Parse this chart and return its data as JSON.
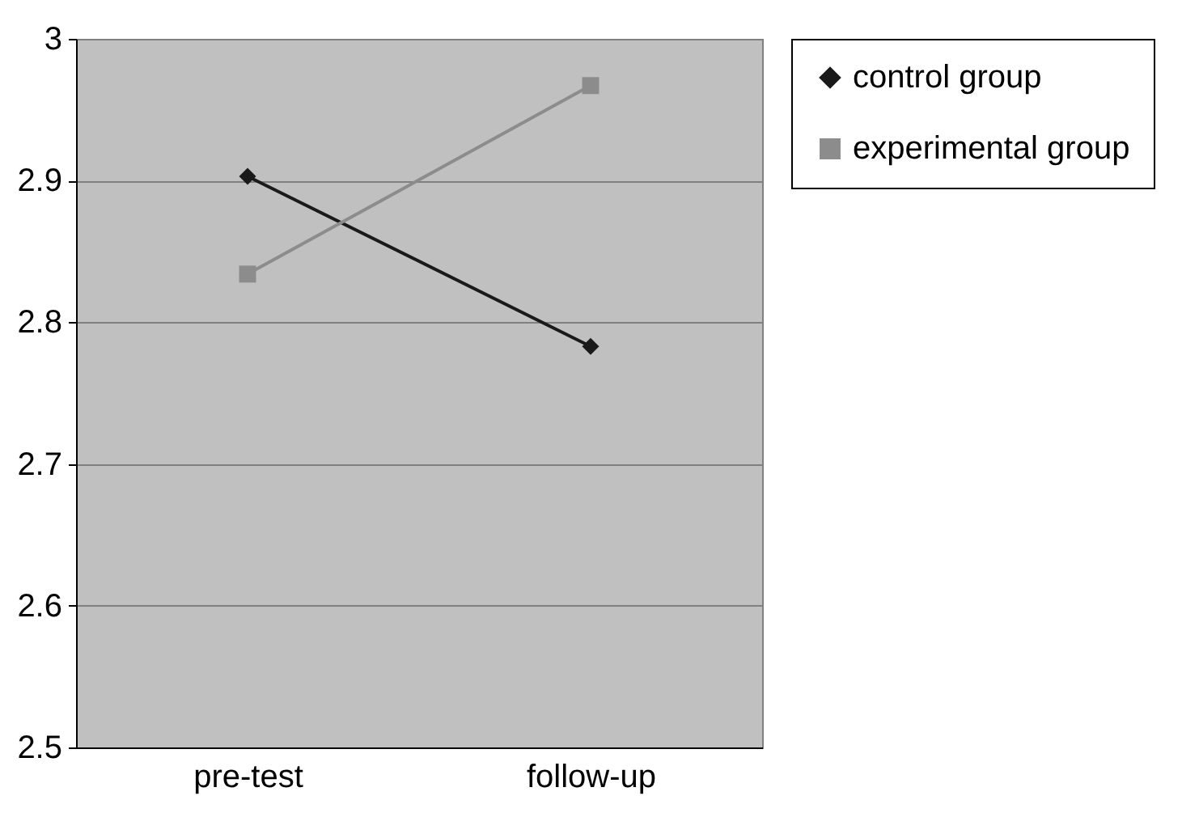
{
  "chart_data": {
    "type": "line",
    "categories": [
      "pre-test",
      "follow-up"
    ],
    "series": [
      {
        "name": "control group",
        "color": "#1a1a1a",
        "marker": "diamond",
        "values": [
          2.903,
          2.783
        ]
      },
      {
        "name": "experimental group",
        "color": "#8c8c8c",
        "marker": "square",
        "values": [
          2.834,
          2.967
        ]
      }
    ],
    "ylim": [
      2.5,
      3
    ],
    "yticks": [
      2.5,
      2.6,
      2.7,
      2.8,
      2.9,
      3
    ],
    "grid": "y",
    "legend": "right"
  }
}
